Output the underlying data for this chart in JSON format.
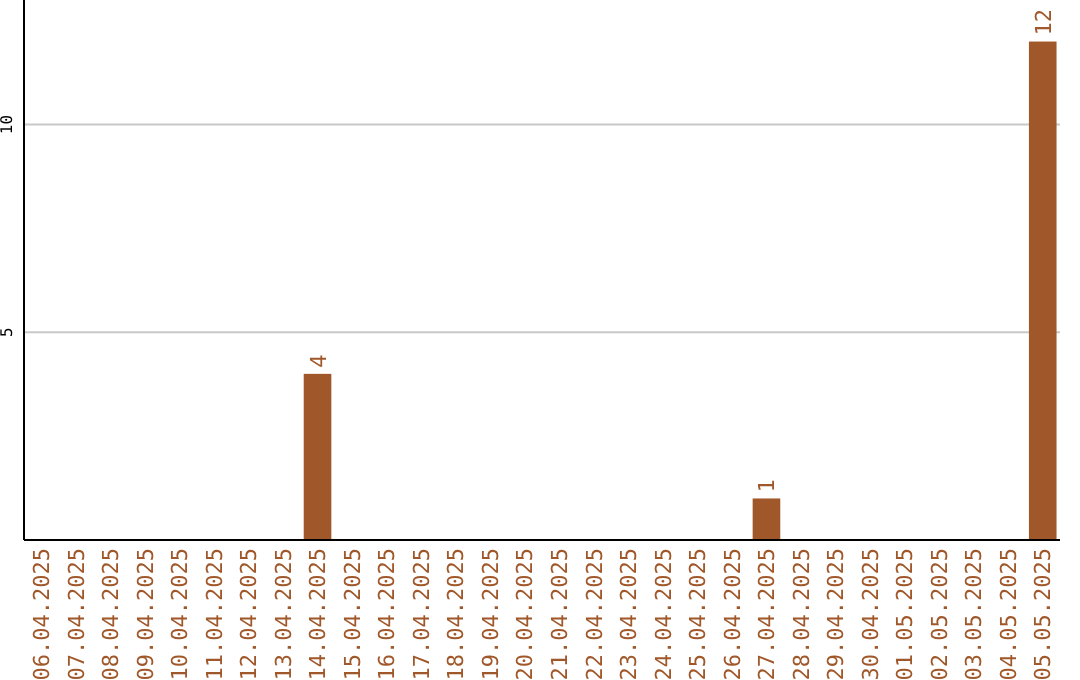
{
  "chart_data": {
    "type": "bar",
    "categories": [
      "06.04.2025",
      "07.04.2025",
      "08.04.2025",
      "09.04.2025",
      "10.04.2025",
      "11.04.2025",
      "12.04.2025",
      "13.04.2025",
      "14.04.2025",
      "15.04.2025",
      "16.04.2025",
      "17.04.2025",
      "18.04.2025",
      "19.04.2025",
      "20.04.2025",
      "21.04.2025",
      "22.04.2025",
      "23.04.2025",
      "24.04.2025",
      "25.04.2025",
      "26.04.2025",
      "27.04.2025",
      "28.04.2025",
      "29.04.2025",
      "30.04.2025",
      "01.05.2025",
      "02.05.2025",
      "03.05.2025",
      "04.05.2025",
      "05.05.2025"
    ],
    "values": [
      0,
      0,
      0,
      0,
      0,
      0,
      0,
      0,
      4,
      0,
      0,
      0,
      0,
      0,
      0,
      0,
      0,
      0,
      0,
      0,
      0,
      1,
      0,
      0,
      0,
      0,
      0,
      0,
      0,
      12
    ],
    "value_labels": [
      null,
      null,
      null,
      null,
      null,
      null,
      null,
      null,
      "4",
      null,
      null,
      null,
      null,
      null,
      null,
      null,
      null,
      null,
      null,
      null,
      null,
      "1",
      null,
      null,
      null,
      null,
      null,
      null,
      null,
      "12"
    ],
    "color": "#a0582a",
    "ylim": [
      0,
      13
    ],
    "yticks": [
      5,
      10
    ],
    "grid": "y"
  }
}
